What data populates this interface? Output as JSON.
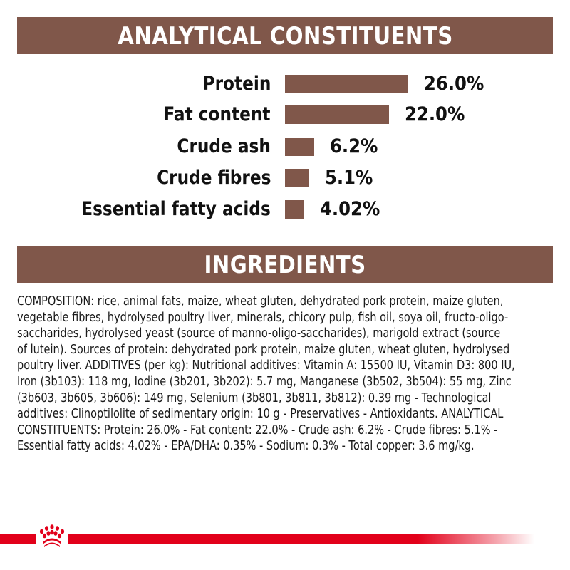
{
  "sections": {
    "analytical_title": "ANALYTICAL CONSTITUENTS",
    "ingredients_title": "INGREDIENTS"
  },
  "colors": {
    "banner": "#80574a",
    "bar": "#80574a",
    "brand_red": "#e2001a"
  },
  "chart_data": {
    "type": "bar",
    "orientation": "horizontal",
    "title": "ANALYTICAL CONSTITUENTS",
    "categories": [
      "Protein",
      "Fat content",
      "Crude ash",
      "Crude fibres",
      "Essential fatty acids"
    ],
    "values": [
      26.0,
      22.0,
      6.2,
      5.1,
      4.02
    ],
    "value_labels": [
      "26.0%",
      "22.0%",
      "6.2%",
      "5.1%",
      "4.02%"
    ],
    "unit": "%",
    "xlabel": "",
    "ylabel": "",
    "grid": false,
    "legend": "none"
  },
  "ingredients": {
    "lines": [
      "COMPOSITION: rice, animal fats, maize, wheat gluten, dehydrated pork protein, maize gluten,",
      "vegetable fibres, hydrolysed poultry liver, minerals, chicory pulp, fish oil, soya oil, fructo-oligo-",
      "saccharides, hydrolysed yeast (source of manno-oligo-saccharides), marigold extract (source",
      "of lutein). Sources of protein: dehydrated pork protein, maize gluten, wheat gluten, hydrolysed",
      "poultry liver. ADDITIVES (per kg): Nutritional additives: Vitamin A: 15500 IU, Vitamin D3: 800 IU,",
      "Iron (3b103): 118 mg, Iodine (3b201, 3b202): 5.7 mg, Manganese (3b502, 3b504): 55 mg, Zinc",
      "(3b603, 3b605, 3b606): 149 mg, Selenium (3b801, 3b811, 3b812): 0.39 mg - Technological",
      "additives: Clinoptilolite of sedimentary origin: 10 g - Preservatives - Antioxidants. ANALYTICAL",
      "CONSTITUENTS: Protein: 26.0% - Fat content: 22.0% - Crude ash: 6.2% - Crude fibres: 5.1% -",
      "Essential fatty acids: 4.02% - EPA/DHA: 0.35% - Sodium: 0.3% - Total copper: 3.6 mg/kg."
    ]
  },
  "footer": {
    "logo_icon": "crown-icon"
  }
}
